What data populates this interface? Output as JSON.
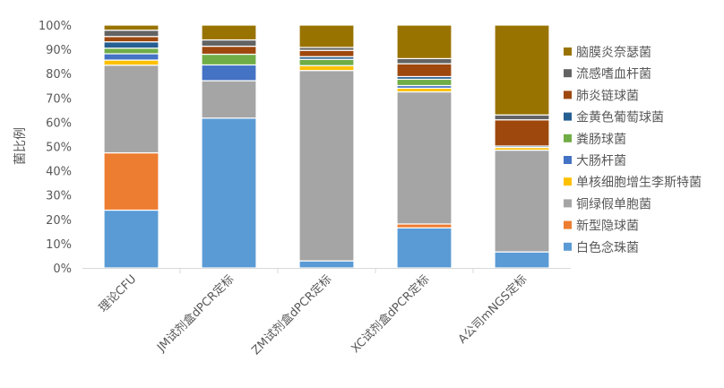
{
  "chart_data": {
    "type": "bar",
    "stacked": true,
    "percent": true,
    "ylabel": "菌比例",
    "xlabel": "",
    "ylim": [
      0,
      100
    ],
    "yticks": [
      "0%",
      "10%",
      "20%",
      "30%",
      "40%",
      "50%",
      "60%",
      "70%",
      "80%",
      "90%",
      "100%"
    ],
    "grid": false,
    "legend_position": "right",
    "categories": [
      "理论CFU",
      "JM试剂盒dPCR定标",
      "ZM试剂盒dPCR定标",
      "XC试剂盒dPCR定标",
      "A公司mNGS定标"
    ],
    "series": [
      {
        "name": "白色念珠菌",
        "color": "#5B9BD5",
        "values": [
          23.8,
          61.7,
          2.9,
          16.5,
          6.6
        ]
      },
      {
        "name": "新型隐球菌",
        "color": "#ED7D31",
        "values": [
          23.6,
          0,
          0,
          1.6,
          0
        ]
      },
      {
        "name": "铜绿假单胞菌",
        "color": "#A5A5A5",
        "values": [
          36.1,
          15.4,
          78.4,
          54.4,
          41.9
        ]
      },
      {
        "name": "单核细胞增生李斯特菌",
        "color": "#FFC000",
        "values": [
          2.1,
          0,
          2.0,
          1.5,
          1.1
        ]
      },
      {
        "name": "大肠杆菌",
        "color": "#4472C4",
        "values": [
          2.6,
          6.5,
          0,
          1.1,
          0
        ]
      },
      {
        "name": "粪肠球菌",
        "color": "#70AD47",
        "values": [
          2.3,
          4.4,
          2.6,
          2.6,
          0
        ]
      },
      {
        "name": "金黄色葡萄球菌",
        "color": "#255E91",
        "values": [
          2.6,
          0,
          1.1,
          1.1,
          0.6
        ]
      },
      {
        "name": "肺炎链球菌",
        "color": "#9E480E",
        "values": [
          2.2,
          3.3,
          2.6,
          5.3,
          10.8
        ]
      },
      {
        "name": "流感嗜血杆菌",
        "color": "#636363",
        "values": [
          2.6,
          2.6,
          1.2,
          2.1,
          2.0
        ]
      },
      {
        "name": "脑膜炎奈瑟菌",
        "color": "#997300",
        "values": [
          2.1,
          6.1,
          9.2,
          13.8,
          37.0
        ]
      }
    ]
  }
}
